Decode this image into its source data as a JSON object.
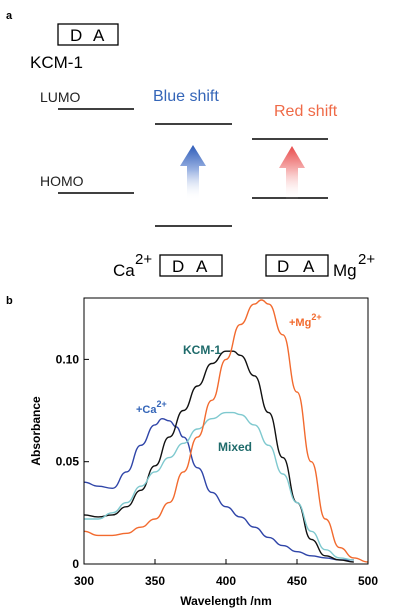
{
  "panel_a": {
    "label": "a",
    "box_d": "D",
    "box_a": "A",
    "compound": "KCM-1",
    "lumo": "LUMO",
    "homo": "HOMO",
    "blue_shift": "Blue shift",
    "red_shift": "Red shift",
    "ca_ion": "Ca",
    "ca_charge": "2+",
    "mg_ion": "Mg",
    "mg_charge": "2+"
  },
  "panel_b": {
    "label": "b",
    "label_kcm": "KCM-1",
    "label_mg_prefix": "+Mg",
    "label_mg_sup": "2+",
    "label_ca_prefix": "+Ca",
    "label_ca_sup": "2+",
    "label_mixed": "Mixed"
  },
  "colors": {
    "blue": "#2f45a8",
    "black": "#111111",
    "orange": "#f26a2e",
    "cyan": "#7fc9cf",
    "blue_text": "#3465b8",
    "red_text": "#ef6a47",
    "teal_text": "#1f6b6b"
  },
  "chart_data": {
    "type": "line",
    "xlabel": "Wavelength /nm",
    "ylabel": "Absorbance",
    "xlim": [
      300,
      500
    ],
    "ylim": [
      0,
      0.13
    ],
    "xticks": [
      300,
      350,
      400,
      450,
      500
    ],
    "yticks": [
      0,
      0.05,
      0.1
    ],
    "ytick_labels": [
      "0",
      "0.05",
      "0.10"
    ],
    "series": [
      {
        "name": "+Ca2+",
        "color": "#2f45a8",
        "x": [
          300,
          310,
          320,
          330,
          340,
          350,
          355,
          360,
          365,
          370,
          380,
          390,
          400,
          410,
          420,
          430,
          440,
          450,
          460,
          470,
          480,
          490
        ],
        "y": [
          0.04,
          0.038,
          0.037,
          0.045,
          0.058,
          0.068,
          0.071,
          0.07,
          0.067,
          0.062,
          0.047,
          0.035,
          0.028,
          0.023,
          0.018,
          0.013,
          0.009,
          0.006,
          0.004,
          0.003,
          0.002,
          0.002
        ]
      },
      {
        "name": "KCM-1",
        "color": "#111111",
        "x": [
          300,
          310,
          320,
          330,
          340,
          350,
          360,
          370,
          380,
          390,
          400,
          405,
          410,
          420,
          430,
          440,
          450,
          460,
          470,
          480,
          490
        ],
        "y": [
          0.024,
          0.023,
          0.024,
          0.028,
          0.036,
          0.048,
          0.062,
          0.075,
          0.087,
          0.098,
          0.104,
          0.104,
          0.102,
          0.092,
          0.074,
          0.052,
          0.03,
          0.012,
          0.004,
          0.002,
          0.001
        ]
      },
      {
        "name": "Mixed",
        "color": "#7fc9cf",
        "x": [
          300,
          310,
          320,
          330,
          340,
          350,
          360,
          370,
          380,
          390,
          400,
          405,
          410,
          420,
          430,
          440,
          450,
          460,
          470,
          480,
          490
        ],
        "y": [
          0.022,
          0.022,
          0.025,
          0.03,
          0.038,
          0.045,
          0.052,
          0.059,
          0.066,
          0.071,
          0.074,
          0.074,
          0.073,
          0.068,
          0.058,
          0.044,
          0.03,
          0.016,
          0.007,
          0.003,
          0.002
        ]
      },
      {
        "name": "+Mg2+",
        "color": "#f26a2e",
        "x": [
          300,
          310,
          320,
          330,
          340,
          350,
          360,
          370,
          380,
          390,
          400,
          410,
          420,
          425,
          430,
          440,
          450,
          460,
          470,
          480,
          490,
          500
        ],
        "y": [
          0.016,
          0.014,
          0.014,
          0.015,
          0.018,
          0.022,
          0.03,
          0.045,
          0.062,
          0.08,
          0.1,
          0.117,
          0.127,
          0.129,
          0.127,
          0.112,
          0.084,
          0.05,
          0.022,
          0.008,
          0.003,
          0.001
        ]
      }
    ]
  }
}
